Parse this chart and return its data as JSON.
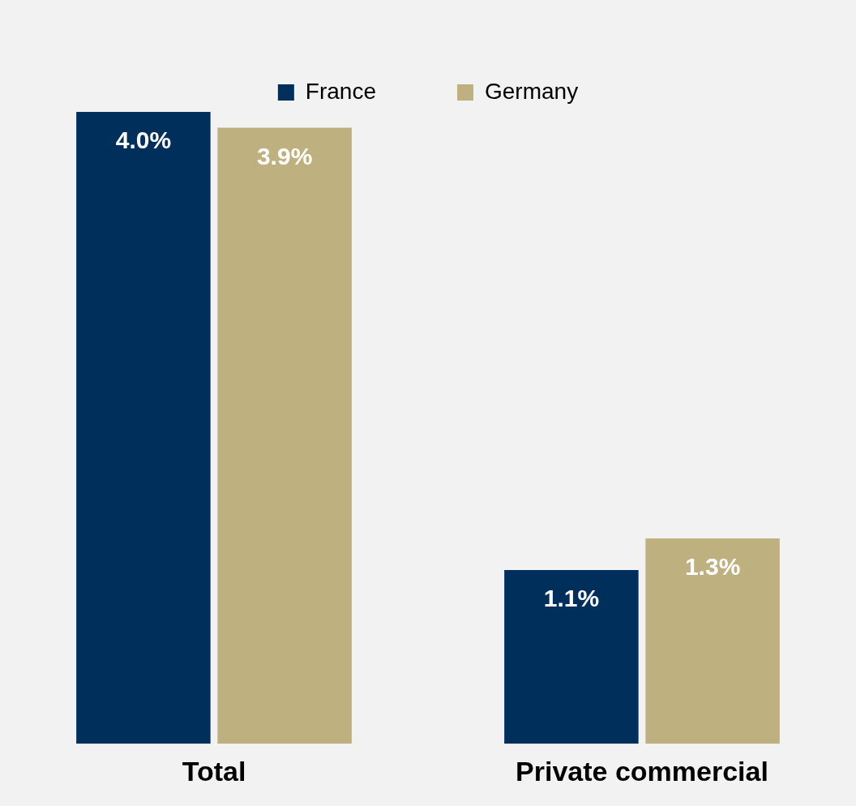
{
  "chart_data": {
    "type": "bar",
    "categories": [
      "Total",
      "Private commercial"
    ],
    "series": [
      {
        "name": "France",
        "color": "#002f5c",
        "values": [
          4.0,
          1.1
        ],
        "value_labels": [
          "4.0%",
          "1.1%"
        ]
      },
      {
        "name": "Germany",
        "color": "#bfb07f",
        "values": [
          3.9,
          1.3
        ],
        "value_labels": [
          "3.9%",
          "1.3%"
        ]
      }
    ],
    "legend": "top",
    "grid": false
  }
}
